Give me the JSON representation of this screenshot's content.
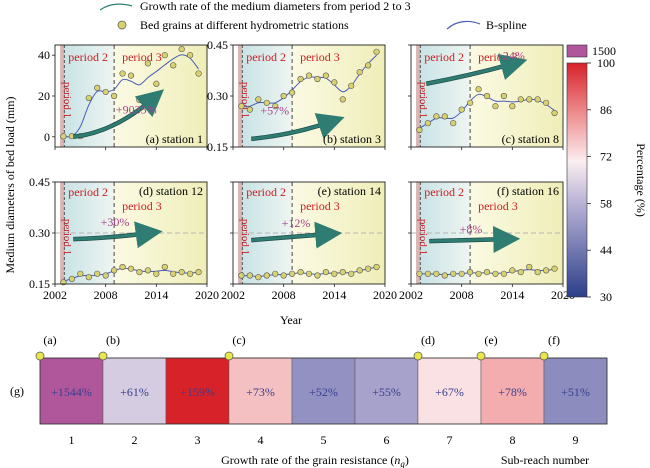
{
  "legend": {
    "growth_arrow": "Growth rate of the medium diameters from period 2 to 3",
    "bed_grains": "Bed grains at different hydrometric stations",
    "bspline": "B-spline"
  },
  "y_axis_label": "Medium diameters of bed load (mm)",
  "x_axis_label": "Year",
  "period_labels": {
    "p1": "period 1",
    "p2": "period 2",
    "p3": "period 3"
  },
  "colorbar": {
    "title": "Percentage (%)",
    "top_swatch_label": "1500",
    "ticks": [
      "100",
      "86",
      "72",
      "58",
      "44",
      "30"
    ],
    "top_color": "#b0569a"
  },
  "colors": {
    "point_fill": "#d8d26e",
    "spline": "#4a5cb8",
    "arrow": "#2f7d72",
    "percent_text": "#a8418f",
    "period_text": "#cc1f24",
    "dash_ref": "#b5b5b5"
  },
  "chart_data": [
    {
      "type": "scatter",
      "title": "(a) station 1",
      "ylim": [
        -5,
        45
      ],
      "yticks": [
        "0",
        "20",
        "40"
      ],
      "xlim": [
        2002,
        2020
      ],
      "period_bounds": [
        2002.6,
        2003.1,
        2009
      ],
      "growth_label": "+9035%",
      "x": [
        2003,
        2004,
        2005,
        2006,
        2007,
        2008,
        2009,
        2010,
        2011,
        2012,
        2013,
        2014,
        2015,
        2016,
        2017,
        2018,
        2019
      ],
      "y": [
        0.2,
        0.3,
        0.3,
        19,
        24,
        22,
        20,
        31,
        30,
        18,
        36,
        26,
        40,
        35,
        43,
        40,
        31
      ]
    },
    {
      "type": "scatter",
      "title": "(b) station 3",
      "ylim": [
        0.15,
        0.45
      ],
      "yticks": [
        "0.15",
        "0.30",
        "0.45"
      ],
      "xlim": [
        2002,
        2020
      ],
      "period_bounds": [
        2002.6,
        2003.1,
        2009
      ],
      "growth_label": "+57%",
      "x": [
        2003,
        2004,
        2005,
        2006,
        2007,
        2008,
        2009,
        2010,
        2011,
        2012,
        2013,
        2014,
        2015,
        2016,
        2017,
        2018,
        2019
      ],
      "y": [
        0.27,
        0.26,
        0.29,
        0.28,
        0.27,
        0.3,
        0.31,
        0.35,
        0.36,
        0.35,
        0.36,
        0.34,
        0.29,
        0.33,
        0.37,
        0.39,
        0.43
      ]
    },
    {
      "type": "scatter",
      "title": "(c) station 8",
      "ylim": [
        0.15,
        0.45
      ],
      "xlim": [
        2002,
        2020
      ],
      "period_bounds": [
        2002.6,
        2003.1,
        2009
      ],
      "growth_label": "+24%",
      "x": [
        2003,
        2004,
        2005,
        2006,
        2007,
        2008,
        2009,
        2010,
        2011,
        2012,
        2013,
        2014,
        2015,
        2016,
        2017,
        2018,
        2019
      ],
      "y": [
        0.2,
        0.22,
        0.24,
        0.24,
        0.22,
        0.26,
        0.28,
        0.32,
        0.3,
        0.27,
        0.3,
        0.27,
        0.29,
        0.29,
        0.29,
        0.28,
        0.25
      ]
    },
    {
      "type": "scatter",
      "title": "(d) station 12",
      "ylim": [
        0.15,
        0.45
      ],
      "yticks": [
        "0.15",
        "0.30",
        "0.45"
      ],
      "xlim": [
        2002,
        2020
      ],
      "period_bounds": [
        2002.6,
        2003.1,
        2009
      ],
      "growth_label": "+30%",
      "x": [
        2003,
        2004,
        2005,
        2006,
        2007,
        2008,
        2009,
        2010,
        2011,
        2012,
        2013,
        2014,
        2015,
        2016,
        2017,
        2018,
        2019
      ],
      "y": [
        0.155,
        0.165,
        0.18,
        0.17,
        0.18,
        0.175,
        0.19,
        0.2,
        0.195,
        0.185,
        0.19,
        0.18,
        0.2,
        0.18,
        0.185,
        0.18,
        0.185
      ]
    },
    {
      "type": "scatter",
      "title": "(e) station 14",
      "ylim": [
        0.15,
        0.45
      ],
      "xlim": [
        2002,
        2020
      ],
      "period_bounds": [
        2002.6,
        2003.1,
        2009
      ],
      "growth_label": "+12%",
      "x": [
        2003,
        2004,
        2005,
        2006,
        2007,
        2008,
        2009,
        2010,
        2011,
        2012,
        2013,
        2014,
        2015,
        2016,
        2017,
        2018,
        2019
      ],
      "y": [
        0.175,
        0.175,
        0.17,
        0.175,
        0.18,
        0.175,
        0.18,
        0.185,
        0.18,
        0.175,
        0.185,
        0.18,
        0.185,
        0.18,
        0.19,
        0.195,
        0.2
      ]
    },
    {
      "type": "scatter",
      "title": "(f) station 16",
      "ylim": [
        0.15,
        0.45
      ],
      "xlim": [
        2002,
        2020
      ],
      "period_bounds": [
        2002.6,
        2003.1,
        2009
      ],
      "growth_label": "+8%",
      "x": [
        2003,
        2004,
        2005,
        2006,
        2007,
        2008,
        2009,
        2010,
        2011,
        2012,
        2013,
        2014,
        2015,
        2016,
        2017,
        2018,
        2019
      ],
      "y": [
        0.18,
        0.18,
        0.18,
        0.175,
        0.18,
        0.18,
        0.185,
        0.18,
        0.185,
        0.18,
        0.18,
        0.19,
        0.185,
        0.2,
        0.185,
        0.19,
        0.195
      ]
    },
    {
      "type": "heatmap",
      "row_label": "(g)",
      "xlabel": "Growth rate of the grain resistance (",
      "xlabel_italic": "n",
      "xlabel_sub": "g",
      "xlabel_end": ")",
      "right_label": "Sub-reach number",
      "categories": [
        "1",
        "2",
        "3",
        "4",
        "5",
        "6",
        "7",
        "8",
        "9"
      ],
      "labels": [
        "+1544%",
        "+61%",
        "+159%",
        "+73%",
        "+52%",
        "+55%",
        "+67%",
        "+78%",
        "+51%"
      ],
      "values": [
        1544,
        61,
        159,
        73,
        52,
        55,
        67,
        78,
        51
      ],
      "station_markers": [
        "(a)",
        "(b)",
        "(c)",
        "(d)",
        "(e)",
        "(f)"
      ],
      "station_marker_boundaries": [
        0,
        1,
        3,
        6,
        7,
        8
      ]
    }
  ],
  "x_ticks": [
    "2002",
    "2008",
    "2014",
    "2020"
  ]
}
